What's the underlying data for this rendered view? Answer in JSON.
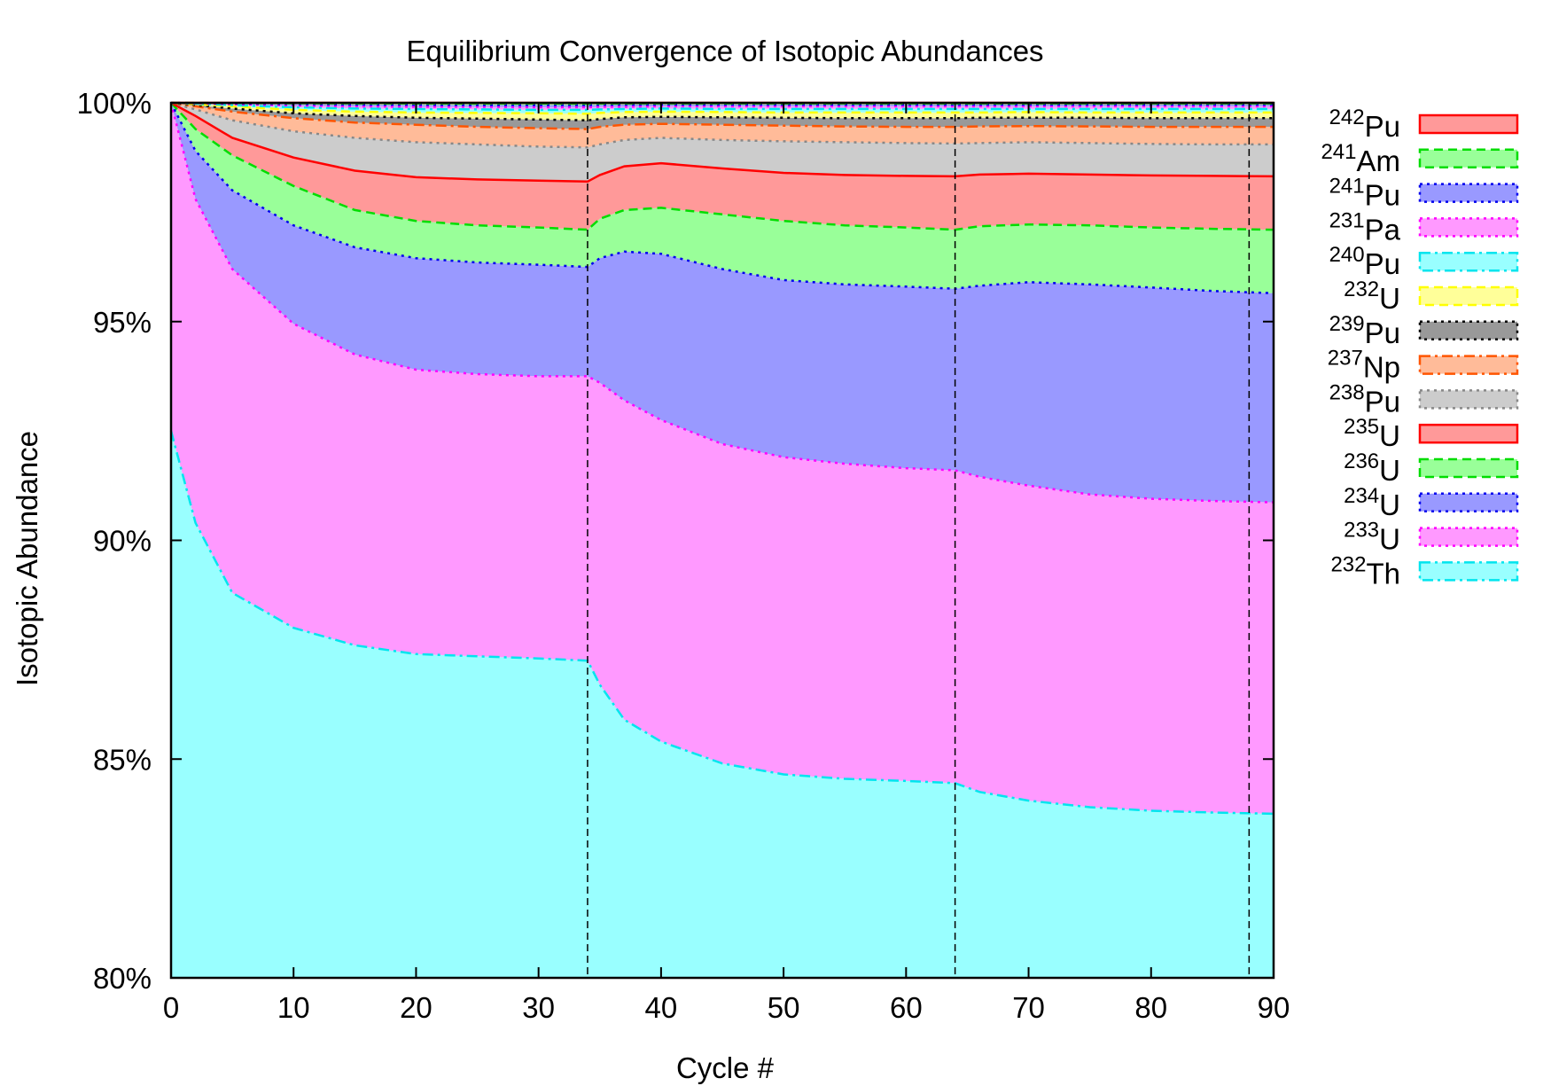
{
  "chart_data": {
    "type": "area",
    "stacked": true,
    "title": "Equilibrium Convergence of Isotopic Abundances",
    "xlabel": "Cycle #",
    "ylabel": "Isotopic Abundance",
    "xlim": [
      0,
      90
    ],
    "ylim": [
      80,
      100
    ],
    "xticks": [
      "0",
      "10",
      "20",
      "30",
      "40",
      "50",
      "60",
      "70",
      "80",
      "90"
    ],
    "yticks": [
      "80%",
      "85%",
      "90%",
      "95%",
      "100%"
    ],
    "ytick_values": [
      80,
      85,
      90,
      95,
      100
    ],
    "xtick_values": [
      0,
      10,
      20,
      30,
      40,
      50,
      60,
      70,
      80,
      90
    ],
    "vlines": [
      34,
      64,
      88
    ],
    "x": [
      0,
      2,
      5,
      10,
      15,
      20,
      25,
      30,
      34,
      35,
      37,
      40,
      45,
      50,
      55,
      60,
      64,
      66,
      70,
      75,
      80,
      85,
      90
    ],
    "cumulative_top": [
      {
        "mass": "232",
        "el": "Th",
        "values": [
          92.5,
          90.4,
          88.8,
          88.0,
          87.6,
          87.4,
          87.35,
          87.3,
          87.25,
          86.7,
          85.9,
          85.4,
          84.9,
          84.65,
          84.55,
          84.5,
          84.45,
          84.25,
          84.05,
          83.9,
          83.82,
          83.78,
          83.75
        ]
      },
      {
        "mass": "233",
        "el": "U",
        "values": [
          100,
          97.8,
          96.2,
          94.95,
          94.25,
          93.9,
          93.8,
          93.75,
          93.75,
          93.6,
          93.2,
          92.75,
          92.2,
          91.9,
          91.75,
          91.65,
          91.6,
          91.45,
          91.25,
          91.05,
          90.95,
          90.9,
          90.87
        ]
      },
      {
        "mass": "234",
        "el": "U",
        "values": [
          100,
          98.9,
          98.0,
          97.2,
          96.7,
          96.45,
          96.35,
          96.3,
          96.25,
          96.45,
          96.6,
          96.55,
          96.2,
          95.95,
          95.85,
          95.8,
          95.75,
          95.82,
          95.9,
          95.85,
          95.78,
          95.7,
          95.65
        ]
      },
      {
        "mass": "236",
        "el": "U",
        "values": [
          100,
          99.4,
          98.8,
          98.1,
          97.55,
          97.3,
          97.2,
          97.15,
          97.1,
          97.35,
          97.55,
          97.6,
          97.45,
          97.3,
          97.2,
          97.15,
          97.1,
          97.18,
          97.22,
          97.2,
          97.15,
          97.12,
          97.1
        ]
      },
      {
        "mass": "235",
        "el": "U",
        "values": [
          100,
          99.7,
          99.2,
          98.75,
          98.45,
          98.3,
          98.25,
          98.22,
          98.2,
          98.35,
          98.55,
          98.62,
          98.5,
          98.4,
          98.35,
          98.33,
          98.32,
          98.36,
          98.38,
          98.36,
          98.34,
          98.33,
          98.32
        ]
      },
      {
        "mass": "238",
        "el": "Pu",
        "values": [
          100,
          99.85,
          99.6,
          99.35,
          99.2,
          99.1,
          99.05,
          99.0,
          98.98,
          99.05,
          99.15,
          99.2,
          99.15,
          99.12,
          99.1,
          99.08,
          99.07,
          99.08,
          99.1,
          99.08,
          99.06,
          99.05,
          99.05
        ]
      },
      {
        "mass": "237",
        "el": "Np",
        "values": [
          100,
          99.92,
          99.8,
          99.65,
          99.55,
          99.5,
          99.45,
          99.42,
          99.4,
          99.45,
          99.5,
          99.52,
          99.5,
          99.48,
          99.46,
          99.45,
          99.45,
          99.46,
          99.47,
          99.46,
          99.45,
          99.45,
          99.45
        ]
      },
      {
        "mass": "239",
        "el": "Pu",
        "values": [
          100,
          99.95,
          99.87,
          99.76,
          99.7,
          99.66,
          99.64,
          99.62,
          99.6,
          99.63,
          99.67,
          99.68,
          99.67,
          99.66,
          99.65,
          99.65,
          99.65,
          99.66,
          99.66,
          99.66,
          99.65,
          99.65,
          99.65
        ]
      },
      {
        "mass": "232",
        "el": "U",
        "values": [
          100,
          99.97,
          99.92,
          99.84,
          99.8,
          99.78,
          99.77,
          99.76,
          99.75,
          99.77,
          99.79,
          99.8,
          99.79,
          99.78,
          99.78,
          99.78,
          99.78,
          99.78,
          99.79,
          99.78,
          99.78,
          99.78,
          99.78
        ]
      },
      {
        "mass": "240",
        "el": "Pu",
        "values": [
          100,
          99.98,
          99.95,
          99.9,
          99.87,
          99.86,
          99.85,
          99.84,
          99.84,
          99.85,
          99.86,
          99.87,
          99.86,
          99.86,
          99.86,
          99.86,
          99.86,
          99.86,
          99.86,
          99.86,
          99.86,
          99.86,
          99.86
        ]
      },
      {
        "mass": "231",
        "el": "Pa",
        "values": [
          100,
          99.99,
          99.97,
          99.94,
          99.92,
          99.91,
          99.91,
          99.9,
          99.9,
          99.91,
          99.91,
          99.92,
          99.92,
          99.92,
          99.92,
          99.92,
          99.92,
          99.92,
          99.92,
          99.92,
          99.92,
          99.92,
          99.92
        ]
      },
      {
        "mass": "241",
        "el": "Pu",
        "values": [
          100,
          99.995,
          99.985,
          99.97,
          99.96,
          99.955,
          99.95,
          99.95,
          99.95,
          99.955,
          99.96,
          99.96,
          99.96,
          99.96,
          99.96,
          99.96,
          99.96,
          99.96,
          99.96,
          99.96,
          99.96,
          99.96,
          99.96
        ]
      },
      {
        "mass": "241",
        "el": "Am",
        "values": [
          100,
          99.998,
          99.995,
          99.99,
          99.985,
          99.983,
          99.982,
          99.981,
          99.98,
          99.982,
          99.984,
          99.985,
          99.985,
          99.985,
          99.985,
          99.985,
          99.985,
          99.985,
          99.985,
          99.985,
          99.985,
          99.985,
          99.985
        ]
      },
      {
        "mass": "242",
        "el": "Pu",
        "values": [
          100,
          100,
          100,
          100,
          100,
          100,
          100,
          100,
          100,
          100,
          100,
          100,
          100,
          100,
          100,
          100,
          100,
          100,
          100,
          100,
          100,
          100,
          100
        ]
      }
    ],
    "legend": [
      {
        "mass": "242",
        "el": "Pu",
        "line": "#ff0000",
        "fill": "#ff9999",
        "dash": "solid"
      },
      {
        "mass": "241",
        "el": "Am",
        "line": "#00dd00",
        "fill": "#99ff99",
        "dash": "dash"
      },
      {
        "mass": "241",
        "el": "Pu",
        "line": "#0000ee",
        "fill": "#9999ff",
        "dash": "dot"
      },
      {
        "mass": "231",
        "el": "Pa",
        "line": "#ff00ff",
        "fill": "#ff99ff",
        "dash": "dot"
      },
      {
        "mass": "240",
        "el": "Pu",
        "line": "#00e5ee",
        "fill": "#99ffff",
        "dash": "dashdot"
      },
      {
        "mass": "232",
        "el": "U",
        "line": "#ffff00",
        "fill": "#ffff99",
        "dash": "dash"
      },
      {
        "mass": "239",
        "el": "Pu",
        "line": "#000000",
        "fill": "#999999",
        "dash": "dot"
      },
      {
        "mass": "237",
        "el": "Np",
        "line": "#ff5500",
        "fill": "#ffbb99",
        "dash": "dashdot"
      },
      {
        "mass": "238",
        "el": "Pu",
        "line": "#888888",
        "fill": "#cccccc",
        "dash": "dot"
      },
      {
        "mass": "235",
        "el": "U",
        "line": "#ff0000",
        "fill": "#ff9999",
        "dash": "solid"
      },
      {
        "mass": "236",
        "el": "U",
        "line": "#00dd00",
        "fill": "#99ff99",
        "dash": "dash"
      },
      {
        "mass": "234",
        "el": "U",
        "line": "#0000ee",
        "fill": "#9999ff",
        "dash": "dot"
      },
      {
        "mass": "233",
        "el": "U",
        "line": "#ff00ff",
        "fill": "#ff99ff",
        "dash": "dot"
      },
      {
        "mass": "232",
        "el": "Th",
        "line": "#00e5ee",
        "fill": "#99ffff",
        "dash": "dashdot"
      }
    ],
    "layer_styles": [
      {
        "line": "#00e5ee",
        "fill": "#99ffff",
        "dash": "dashdot"
      },
      {
        "line": "#ff00ff",
        "fill": "#ff99ff",
        "dash": "dot"
      },
      {
        "line": "#0000ee",
        "fill": "#9999ff",
        "dash": "dot"
      },
      {
        "line": "#00dd00",
        "fill": "#99ff99",
        "dash": "dash"
      },
      {
        "line": "#ff0000",
        "fill": "#ff9999",
        "dash": "solid"
      },
      {
        "line": "#888888",
        "fill": "#cccccc",
        "dash": "dot"
      },
      {
        "line": "#ff5500",
        "fill": "#ffbb99",
        "dash": "dashdot"
      },
      {
        "line": "#000000",
        "fill": "#999999",
        "dash": "dot"
      },
      {
        "line": "#ffff00",
        "fill": "#ffff99",
        "dash": "dash"
      },
      {
        "line": "#00e5ee",
        "fill": "#99ffff",
        "dash": "dashdot"
      },
      {
        "line": "#ff00ff",
        "fill": "#ff99ff",
        "dash": "dot"
      },
      {
        "line": "#0000ee",
        "fill": "#9999ff",
        "dash": "dot"
      },
      {
        "line": "#00dd00",
        "fill": "#99ff99",
        "dash": "dash"
      },
      {
        "line": "#ff0000",
        "fill": "#ff9999",
        "dash": "solid"
      }
    ]
  }
}
